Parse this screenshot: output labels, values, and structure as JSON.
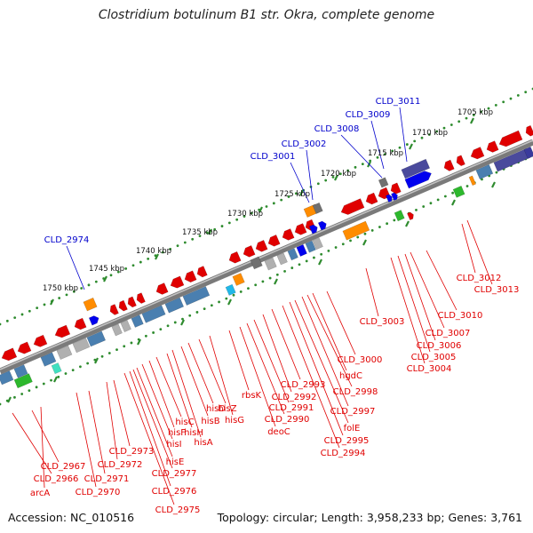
{
  "title": "Clostridium botulinum B1 str. Okra, complete genome",
  "accession": "Accession: NC_010516",
  "summary": "Topology: circular; Length: 3,958,233 bp; Genes: 3,761",
  "colors": {
    "backbone": "#7a7a7a",
    "axis_dot": "#2e8b2e",
    "label_red": "#e00000",
    "label_blue": "#0000cc"
  },
  "scale_labels": [
    "1750 kbp",
    "1745 kbp",
    "1740 kbp",
    "1735 kbp",
    "1730 kbp",
    "1725 kbp",
    "1720 kbp",
    "1715 kbp",
    "1710 kbp",
    "1705 kbp"
  ],
  "blue_labels": [
    "CLD_2974",
    "CLD_3001",
    "CLD_3002",
    "CLD_3008",
    "CLD_3009",
    "CLD_3011"
  ],
  "red_labels": [
    "CLD_2966",
    "CLD_2967",
    "arcA",
    "CLD_2970",
    "CLD_2971",
    "CLD_2972",
    "CLD_2973",
    "CLD_2975",
    "CLD_2976",
    "CLD_2977",
    "hisE",
    "hisI",
    "hisF",
    "hisC",
    "hisH",
    "hisA",
    "hisB",
    "hisD",
    "hisZ",
    "hisG",
    "rbsK",
    "deoC",
    "CLD_2990",
    "CLD_2991",
    "CLD_2992",
    "CLD_2993",
    "CLD_2994",
    "CLD_2995",
    "folE",
    "CLD_2997",
    "CLD_2998",
    "hgdC",
    "CLD_3000",
    "CLD_3003",
    "CLD_3004",
    "CLD_3005",
    "CLD_3006",
    "CLD_3007",
    "CLD_3010",
    "CLD_3012",
    "CLD_3013"
  ]
}
